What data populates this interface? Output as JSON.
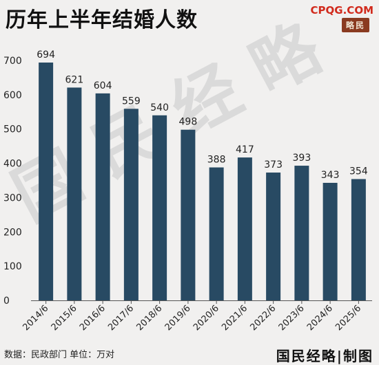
{
  "header": {
    "title": "历年上半年结婚人数",
    "site": "CPQG.COM",
    "seal": "略民"
  },
  "footer": {
    "source": "数据：民政部门    单位：万对",
    "brand": "国民经略|制图"
  },
  "watermark": {
    "text": "国民经略"
  },
  "colors": {
    "bar": "#284a63",
    "background": "#f1f0ef",
    "site": "#d12a1c"
  },
  "chart_data": {
    "type": "bar",
    "title": "历年上半年结婚人数",
    "categories": [
      "2014/6",
      "2015/6",
      "2016/6",
      "2017/6",
      "2018/6",
      "2019/6",
      "2020/6",
      "2021/6",
      "2022/6",
      "2023/6",
      "2024/6",
      "2025/6"
    ],
    "values": [
      694,
      621,
      604,
      559,
      540,
      498,
      388,
      417,
      373,
      393,
      343,
      354
    ],
    "ylim": [
      0,
      700
    ],
    "yticks": [
      0,
      100,
      200,
      300,
      400,
      500,
      600,
      700
    ],
    "grid": false,
    "unit": "万对"
  }
}
